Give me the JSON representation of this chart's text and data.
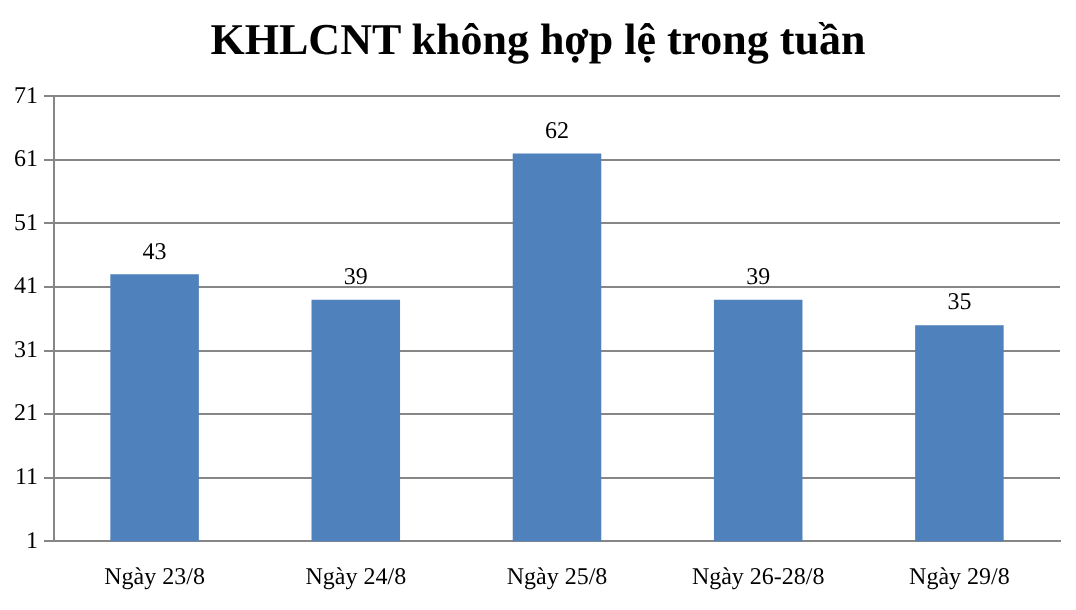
{
  "chart_data": {
    "type": "bar",
    "title": "KHLCNT không hợp lệ trong tuần",
    "categories": [
      "Ngày 23/8",
      "Ngày 24/8",
      "Ngày 25/8",
      "Ngày 26-28/8",
      "Ngày 29/8"
    ],
    "values": [
      43,
      39,
      62,
      39,
      35
    ],
    "color": "#4f81bd",
    "ylim": [
      1,
      71
    ],
    "yticks": [
      1,
      11,
      21,
      31,
      41,
      51,
      61,
      71
    ],
    "grid": "y",
    "data_labels": true
  }
}
